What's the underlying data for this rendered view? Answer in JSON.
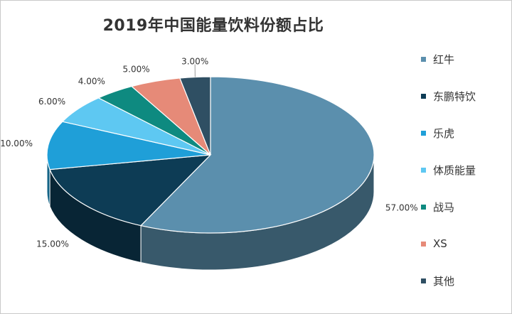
{
  "chart_data": {
    "type": "pie",
    "title": "2019年中国能量饮料份额占比",
    "categories": [
      "红牛",
      "东鹏特饮",
      "乐虎",
      "体质能量",
      "战马",
      "XS",
      "其他"
    ],
    "values": [
      57,
      15,
      10,
      6,
      4,
      5,
      3
    ],
    "labels": [
      "57.00%",
      "15.00%",
      "10.00%",
      "6.00%",
      "4.00%",
      "5.00%",
      "3.00%"
    ],
    "colors": [
      "#5b8fad",
      "#0d3c55",
      "#1f9fd8",
      "#5ec8f2",
      "#0e8a80",
      "#e68a78",
      "#2f4f63"
    ],
    "legend_position": "right",
    "style": "3d-pie"
  }
}
